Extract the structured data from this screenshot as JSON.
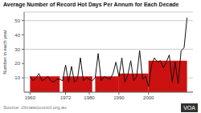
{
  "chart_data": {
    "type": "line",
    "title": "Average Number of Record Hot Days Per Annum for Each Decade",
    "ylabel": "Number in each year",
    "annotations": [
      "Source: climatecouncil.org.au",
      "VOA"
    ],
    "x": [
      1960,
      1961,
      1962,
      1963,
      1964,
      1965,
      1966,
      1967,
      1968,
      1969,
      1970,
      1971,
      1972,
      1973,
      1974,
      1975,
      1976,
      1977,
      1978,
      1979,
      1980,
      1981,
      1982,
      1983,
      1984,
      1985,
      1986,
      1987,
      1988,
      1989,
      1990,
      1991,
      1992,
      1993,
      1994,
      1995,
      1996,
      1997,
      1998,
      1999,
      2000,
      2001,
      2002,
      2003,
      2004,
      2005,
      2006,
      2007,
      2008,
      2009,
      2010,
      2011,
      2012,
      2013
    ],
    "values": [
      11,
      8,
      10,
      13,
      8,
      9,
      11,
      8,
      7,
      9,
      9,
      8,
      19,
      7,
      18,
      7,
      9,
      24,
      8,
      10,
      9,
      8,
      10,
      27,
      8,
      11,
      10,
      9,
      13,
      21,
      11,
      24,
      7,
      12,
      22,
      8,
      11,
      29,
      9,
      11,
      4,
      19,
      24,
      21,
      22,
      17,
      21,
      26,
      7,
      21,
      6,
      29,
      31,
      52
    ],
    "color": "#111111",
    "bars": {
      "type": "bar",
      "color": "#cc1111",
      "x0": [
        1960,
        1971,
        1982,
        1990,
        2000
      ],
      "x1": [
        1970,
        1981,
        1990,
        2000,
        2013
      ],
      "values": [
        11,
        11,
        11,
        13,
        22
      ]
    },
    "xlim": [
      1958,
      2015
    ],
    "ylim": [
      0,
      56
    ],
    "xticks": [
      1960,
      1972,
      1980,
      1990,
      2000
    ],
    "yticks": [
      10,
      20,
      30,
      40,
      50
    ],
    "grid": "y"
  }
}
